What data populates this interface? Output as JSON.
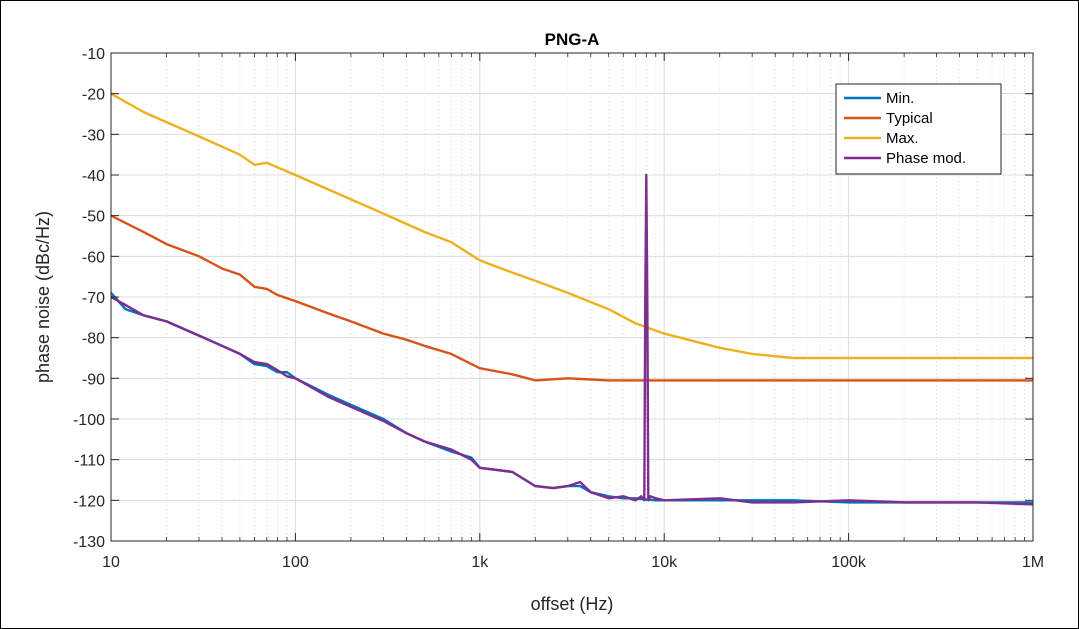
{
  "chart_data": {
    "type": "line",
    "title": "PNG-A",
    "xlabel": "offset (Hz)",
    "ylabel": "phase noise (dBc/Hz)",
    "xscale": "log",
    "xlim": [
      10,
      1000000
    ],
    "ylim": [
      -130,
      -10
    ],
    "xticks": [
      10,
      100,
      1000,
      10000,
      100000,
      1000000
    ],
    "xtick_labels": [
      "10",
      "100",
      "1k",
      "10k",
      "100k",
      "1M"
    ],
    "yticks": [
      -130,
      -120,
      -110,
      -100,
      -90,
      -80,
      -70,
      -60,
      -50,
      -40,
      -30,
      -20,
      -10
    ],
    "grid": true,
    "legend_position": "top-right",
    "series": [
      {
        "name": "Min.",
        "color": "#0072BD",
        "x": [
          10,
          12,
          15,
          20,
          30,
          40,
          50,
          60,
          70,
          80,
          90,
          100,
          150,
          200,
          300,
          400,
          500,
          700,
          900,
          1000,
          1500,
          2000,
          2500,
          3000,
          3500,
          4000,
          5000,
          6000,
          7000,
          8000,
          9000,
          10000,
          20000,
          30000,
          50000,
          100000,
          200000,
          500000,
          1000000
        ],
        "y": [
          -69,
          -73,
          -74.5,
          -76,
          -79.5,
          -82,
          -84,
          -86.5,
          -87,
          -88.5,
          -88.5,
          -90,
          -94,
          -96.5,
          -100,
          -103.5,
          -105.5,
          -108,
          -109.5,
          -112,
          -113,
          -116.5,
          -117,
          -116.5,
          -116.5,
          -118,
          -119,
          -119.5,
          -119.5,
          -119.8,
          -120,
          -120,
          -120,
          -120,
          -120,
          -120.5,
          -120.5,
          -120.5,
          -120.5
        ]
      },
      {
        "name": "Typical",
        "color": "#D95319",
        "x": [
          10,
          15,
          20,
          30,
          40,
          50,
          60,
          70,
          80,
          100,
          150,
          200,
          300,
          400,
          500,
          700,
          1000,
          1500,
          2000,
          3000,
          5000,
          7000,
          10000,
          20000,
          50000,
          100000,
          300000,
          1000000
        ],
        "y": [
          -50,
          -54,
          -57,
          -60,
          -63,
          -64.5,
          -67.5,
          -68,
          -69.5,
          -71,
          -74,
          -76,
          -79,
          -80.5,
          -82,
          -84,
          -87.5,
          -89,
          -90.5,
          -90,
          -90.5,
          -90.5,
          -90.5,
          -90.5,
          -90.5,
          -90.5,
          -90.5,
          -90.5
        ]
      },
      {
        "name": "Max.",
        "color": "#EDB120",
        "x": [
          10,
          15,
          20,
          30,
          50,
          60,
          70,
          100,
          200,
          300,
          500,
          700,
          1000,
          1500,
          2000,
          3000,
          5000,
          7000,
          10000,
          20000,
          30000,
          50000,
          100000,
          200000,
          500000,
          1000000
        ],
        "y": [
          -20,
          -24.5,
          -27,
          -30.5,
          -35,
          -37.5,
          -37,
          -40,
          -46,
          -49.5,
          -54,
          -56.5,
          -61,
          -64,
          -66,
          -69,
          -73,
          -76.5,
          -79,
          -82.5,
          -84,
          -85,
          -85,
          -85,
          -85,
          -85
        ]
      },
      {
        "name": "Phase mod.",
        "color": "#7E2F8E",
        "x": [
          10,
          12,
          15,
          20,
          30,
          40,
          50,
          60,
          70,
          80,
          90,
          100,
          150,
          200,
          300,
          400,
          500,
          700,
          900,
          1000,
          1500,
          2000,
          2500,
          3000,
          3500,
          4000,
          5000,
          6000,
          7000,
          7500,
          7800,
          7900,
          8000,
          8100,
          8200,
          8400,
          9000,
          10000,
          20000,
          30000,
          50000,
          100000,
          200000,
          500000,
          1000000
        ],
        "y": [
          -70,
          -72,
          -74.5,
          -76,
          -79.5,
          -82,
          -84,
          -86,
          -86.5,
          -88,
          -89.5,
          -90,
          -94.5,
          -97,
          -100.5,
          -103.5,
          -105.5,
          -107.5,
          -110,
          -112,
          -113,
          -116.5,
          -117,
          -116.5,
          -115.5,
          -118,
          -119.5,
          -119,
          -120,
          -119,
          -120,
          -70,
          -40,
          -70,
          -120,
          -119,
          -119.5,
          -120,
          -119.5,
          -120.5,
          -120.5,
          -120,
          -120.5,
          -120.5,
          -121
        ]
      }
    ]
  }
}
